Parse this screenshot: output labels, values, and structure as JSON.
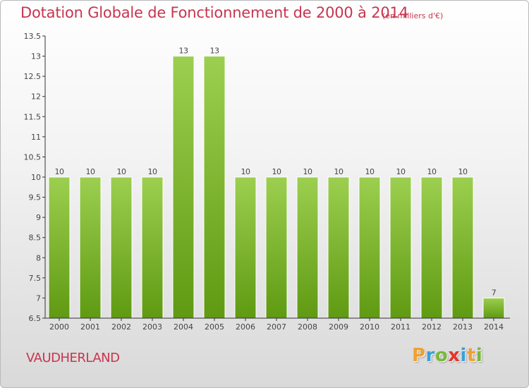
{
  "header": {
    "title": "Dotation Globale de Fonctionnement de 2000 à 2014",
    "subtitle": "(en milliers d'€)"
  },
  "footer": {
    "place": "VAUDHERLAND",
    "logo_letters": [
      "P",
      "r",
      "o",
      "x",
      "i",
      "t",
      "i"
    ],
    "logo_colors": [
      "#f0a030",
      "#3aa0d8",
      "#79b83a",
      "#e3342f",
      "#3aa0d8",
      "#f0a030",
      "#79b83a"
    ]
  },
  "colors": {
    "title": "#c8354f",
    "bar_light": "#9ccf4f",
    "bar_dark": "#5f9a12",
    "axis": "#333333",
    "label": "#444444"
  },
  "chart_data": {
    "type": "bar",
    "title": "Dotation Globale de Fonctionnement de 2000 à 2014",
    "subtitle": "(en milliers d'€)",
    "categories": [
      "2000",
      "2001",
      "2002",
      "2003",
      "2004",
      "2005",
      "2006",
      "2007",
      "2008",
      "2009",
      "2010",
      "2011",
      "2012",
      "2013",
      "2014"
    ],
    "values": [
      10,
      10,
      10,
      10,
      13,
      13,
      10,
      10,
      10,
      10,
      10,
      10,
      10,
      10,
      7
    ],
    "data_labels": [
      "10",
      "10",
      "10",
      "10",
      "13",
      "13",
      "10",
      "10",
      "10",
      "10",
      "10",
      "10",
      "10",
      "10",
      "7"
    ],
    "ylim": [
      6.5,
      13.5
    ],
    "yticks": [
      "6.5",
      "7",
      "7.5",
      "8",
      "8.5",
      "9",
      "9.5",
      "10",
      "10.5",
      "11",
      "11.5",
      "12",
      "12.5",
      "13",
      "13.5"
    ],
    "xlabel": "",
    "ylabel": "",
    "grid": false,
    "legend": "none"
  }
}
